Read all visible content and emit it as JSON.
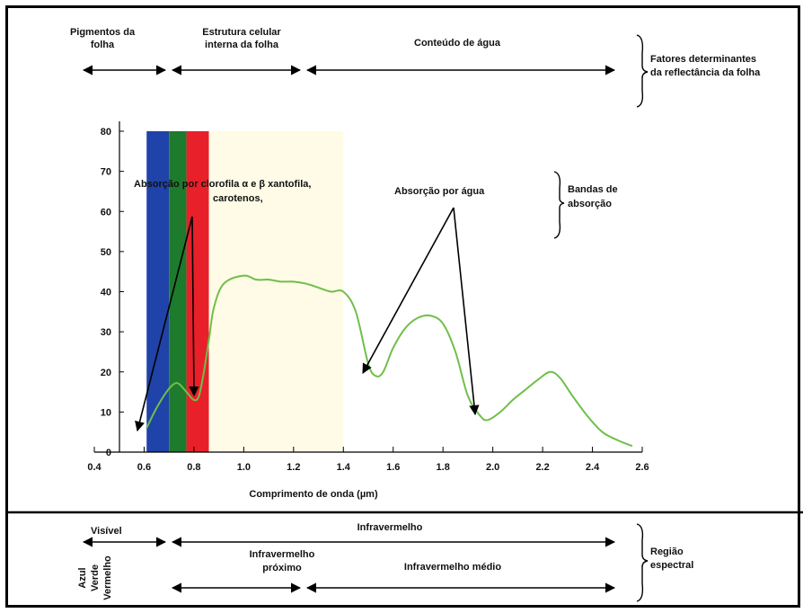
{
  "top": {
    "pigmentos": [
      "Pigmentos da",
      "folha"
    ],
    "estrutura": [
      "Estrutura celular",
      "interna da folha"
    ],
    "agua": "Conteúdo de água",
    "fatores": [
      "Fatores determinantes",
      "da reflectância da folha"
    ]
  },
  "annotations": {
    "clorofila": [
      "Absorção por clorofila α e β xantofila,",
      "carotenos,"
    ],
    "agua": "Absorção por água",
    "bandas": [
      "Bandas de",
      "absorção"
    ]
  },
  "bottom": {
    "visivel": "Visível",
    "infravermelho": "Infravermelho",
    "proximo": [
      "Infravermelho",
      "próximo"
    ],
    "medio": "Infravermelho médio",
    "regiao": [
      "Região",
      "espectral"
    ],
    "cores": [
      "Azul",
      "Verde",
      "Vermelho"
    ]
  },
  "colors": {
    "azul": "#1f43a8",
    "verde": "#1e7a2c",
    "vermelho": "#e8202a",
    "nir": "#fffbe6",
    "curve": "#6fbf4a"
  },
  "chart_data": {
    "type": "line",
    "xlabel": "Comprimento de onda (µm)",
    "ylabel": "",
    "xlim": [
      0.4,
      2.6
    ],
    "ylim": [
      0,
      80
    ],
    "xticks": [
      "0.4",
      "0.6",
      "0.8",
      "1.0",
      "1.2",
      "1.4",
      "1.6",
      "1.8",
      "2.0",
      "2.2",
      "2.4",
      "2.6"
    ],
    "yticks": [
      "0",
      "10",
      "20",
      "30",
      "40",
      "50",
      "60",
      "70",
      "80"
    ],
    "bands": [
      {
        "name": "Azul",
        "x": [
          0.61,
          0.7
        ]
      },
      {
        "name": "Verde",
        "x": [
          0.7,
          0.77
        ]
      },
      {
        "name": "Vermelho",
        "x": [
          0.77,
          0.86
        ]
      },
      {
        "name": "Infravermelho próximo",
        "x": [
          0.86,
          1.4
        ]
      }
    ],
    "series": [
      {
        "x": [
          0.61,
          0.65,
          0.69,
          0.72,
          0.74,
          0.77,
          0.8,
          0.82,
          0.84,
          0.86,
          0.88,
          0.92,
          1.0,
          1.05,
          1.1,
          1.15,
          1.2,
          1.25,
          1.3,
          1.35,
          1.4,
          1.45,
          1.5,
          1.53,
          1.56,
          1.6,
          1.65,
          1.7,
          1.75,
          1.8,
          1.85,
          1.9,
          1.95,
          1.98,
          2.03,
          2.08,
          2.13,
          2.18,
          2.23,
          2.27,
          2.32,
          2.38,
          2.44,
          2.5,
          2.56
        ],
        "values": [
          6,
          11,
          15,
          17,
          17,
          15,
          13,
          14,
          20,
          28,
          36,
          42,
          44,
          43,
          43,
          42.5,
          42.5,
          42,
          41,
          40,
          40,
          35,
          22,
          19,
          20,
          26,
          31,
          33.5,
          34,
          32,
          25,
          14,
          9,
          8,
          10,
          13,
          15.5,
          18,
          20,
          18.5,
          14,
          9,
          5,
          3,
          1.5
        ]
      }
    ],
    "annotations": [
      {
        "text": "Absorção por clorofila α e β xantofila, carotenos,",
        "targets": [
          [
            0.6,
            6
          ],
          [
            0.82,
            14
          ]
        ]
      },
      {
        "text": "Absorção por água",
        "targets": [
          [
            1.53,
            20
          ],
          [
            1.96,
            9
          ]
        ]
      }
    ]
  }
}
